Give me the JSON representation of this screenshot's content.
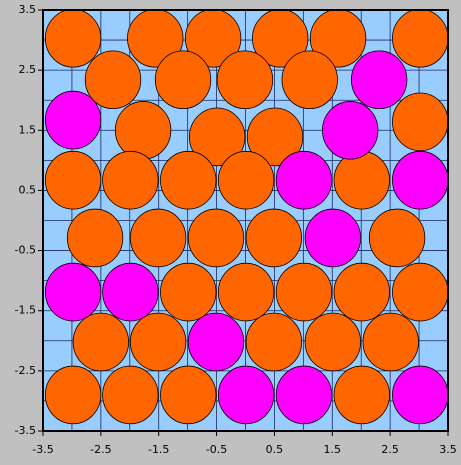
{
  "chart_data": {
    "type": "scatter",
    "xlim": [
      -3.5,
      3.5
    ],
    "ylim": [
      -3.5,
      3.5
    ],
    "xticks": [
      -3.5,
      -2.5,
      -1.5,
      -0.5,
      0.5,
      1.5,
      2.5,
      3.5
    ],
    "yticks": [
      -3.5,
      -2.5,
      -1.5,
      -0.5,
      0.5,
      1.5,
      2.5,
      3.5
    ],
    "grid": true,
    "minor_grid": true,
    "marker_radius": 0.48,
    "series": [
      {
        "color": "#ff6600",
        "x": [
          -2.98,
          -1.56,
          -0.56,
          0.6,
          1.6,
          3.02,
          -2.29,
          -1.08,
          -0.01,
          1.11,
          -1.77,
          -0.49,
          0.51,
          3.02,
          -2.98,
          -1.99,
          -0.99,
          0.01,
          2.01,
          -2.6,
          -1.51,
          -0.51,
          0.49,
          2.62,
          -0.99,
          0.01,
          1.01,
          2.01,
          3.02,
          -2.5,
          -1.51,
          0.49,
          1.51,
          2.51,
          -2.98,
          -1.99,
          -0.99,
          2.01
        ],
        "y": [
          3.03,
          3.03,
          3.03,
          3.03,
          3.03,
          3.03,
          2.34,
          2.34,
          2.34,
          2.34,
          1.5,
          1.39,
          1.39,
          1.64,
          0.67,
          0.67,
          0.67,
          0.67,
          0.67,
          -0.29,
          -0.29,
          -0.29,
          -0.29,
          -0.29,
          -1.19,
          -1.19,
          -1.19,
          -1.19,
          -1.19,
          -2.02,
          -2.02,
          -2.02,
          -2.02,
          -2.02,
          -2.9,
          -2.9,
          -2.9,
          -2.9
        ]
      },
      {
        "color": "#ff00ff",
        "x": [
          2.31,
          -2.98,
          1.81,
          1.01,
          3.02,
          1.51,
          -2.98,
          -1.99,
          -0.51,
          0.01,
          1.01,
          3.02
        ],
        "y": [
          2.34,
          1.67,
          1.5,
          0.67,
          0.67,
          -0.29,
          -1.19,
          -1.19,
          -2.02,
          -2.9,
          -2.9,
          -2.9
        ]
      }
    ]
  }
}
